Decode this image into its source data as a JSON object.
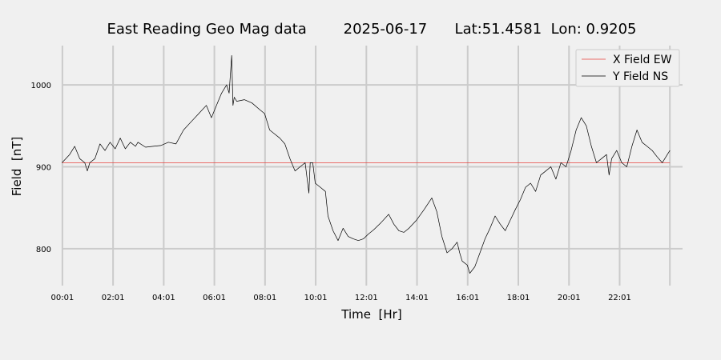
{
  "chart_data": {
    "type": "line",
    "title": "East Reading Geo Mag data        2025-06-17      Lat:51.4581  Lon: 0.9205",
    "xlabel": "Time  [Hr]",
    "ylabel": "Field  [nT]",
    "xlim": [
      0.02,
      24.5
    ],
    "ylim": [
      755,
      1048
    ],
    "x_ticks": [
      {
        "value": 0.0167,
        "label": "00:01"
      },
      {
        "value": 2.0167,
        "label": "02:01"
      },
      {
        "value": 4.0167,
        "label": "04:01"
      },
      {
        "value": 6.0167,
        "label": "06:01"
      },
      {
        "value": 8.0167,
        "label": "08:01"
      },
      {
        "value": 10.0167,
        "label": "10:01"
      },
      {
        "value": 12.0167,
        "label": "12:01"
      },
      {
        "value": 14.0167,
        "label": "14:01"
      },
      {
        "value": 16.0167,
        "label": "16:01"
      },
      {
        "value": 18.0167,
        "label": "18:01"
      },
      {
        "value": 20.0167,
        "label": "20:01"
      },
      {
        "value": 22.0167,
        "label": "22:01"
      },
      {
        "value": 24.0,
        "label": ""
      }
    ],
    "y_ticks": [
      {
        "value": 800,
        "label": "800"
      },
      {
        "value": 900,
        "label": "900"
      },
      {
        "value": 1000,
        "label": "1000"
      }
    ],
    "grid": true,
    "legend_position": "top-right",
    "series": [
      {
        "name": "X Field EW",
        "color": "#e8413c",
        "x": [
          0.0,
          24.0
        ],
        "y": [
          905,
          905
        ]
      },
      {
        "name": "Y Field NS",
        "color": "#000000",
        "x": [
          0.0,
          0.3,
          0.5,
          0.7,
          0.9,
          1.0,
          1.1,
          1.3,
          1.5,
          1.7,
          1.9,
          2.1,
          2.3,
          2.5,
          2.7,
          2.9,
          3.0,
          3.3,
          3.6,
          3.9,
          4.2,
          4.5,
          4.8,
          5.1,
          5.4,
          5.7,
          5.9,
          6.1,
          6.3,
          6.5,
          6.6,
          6.7,
          6.75,
          6.8,
          6.9,
          7.2,
          7.5,
          7.8,
          8.0,
          8.2,
          8.4,
          8.6,
          8.8,
          9.0,
          9.2,
          9.4,
          9.6,
          9.75,
          9.8,
          9.9,
          10.0,
          10.2,
          10.4,
          10.5,
          10.7,
          10.9,
          11.1,
          11.3,
          11.5,
          11.7,
          11.9,
          12.1,
          12.3,
          12.6,
          12.9,
          13.1,
          13.3,
          13.5,
          13.7,
          14.0,
          14.3,
          14.6,
          14.8,
          15.0,
          15.2,
          15.4,
          15.6,
          15.7,
          15.8,
          16.0,
          16.1,
          16.3,
          16.5,
          16.7,
          16.9,
          17.1,
          17.3,
          17.5,
          17.7,
          17.9,
          18.1,
          18.3,
          18.5,
          18.7,
          18.9,
          19.1,
          19.3,
          19.5,
          19.7,
          19.9,
          20.1,
          20.3,
          20.5,
          20.7,
          20.9,
          21.1,
          21.3,
          21.5,
          21.6,
          21.7,
          21.9,
          22.1,
          22.3,
          22.5,
          22.7,
          22.9,
          23.1,
          23.3,
          23.5,
          23.7,
          23.9,
          24.0
        ],
        "y": [
          905,
          915,
          925,
          910,
          905,
          895,
          905,
          910,
          928,
          920,
          930,
          922,
          935,
          922,
          930,
          925,
          930,
          924,
          925,
          926,
          930,
          928,
          945,
          955,
          965,
          975,
          960,
          975,
          990,
          1000,
          990,
          1036,
          975,
          985,
          980,
          982,
          978,
          970,
          965,
          945,
          940,
          935,
          928,
          910,
          895,
          900,
          905,
          868,
          905,
          905,
          880,
          875,
          870,
          840,
          822,
          810,
          825,
          815,
          812,
          810,
          812,
          818,
          823,
          832,
          842,
          830,
          822,
          820,
          825,
          835,
          848,
          862,
          845,
          815,
          795,
          800,
          808,
          795,
          785,
          780,
          770,
          778,
          795,
          812,
          825,
          840,
          830,
          822,
          835,
          848,
          860,
          875,
          880,
          870,
          890,
          895,
          900,
          885,
          905,
          900,
          920,
          945,
          960,
          950,
          925,
          905,
          910,
          915,
          890,
          910,
          920,
          905,
          900,
          925,
          945,
          930,
          925,
          920,
          912,
          905,
          915,
          920
        ]
      }
    ]
  }
}
